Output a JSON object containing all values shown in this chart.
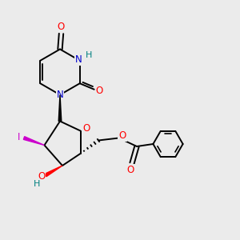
{
  "bg_color": "#ebebeb",
  "atom_colors": {
    "O": "#ff0000",
    "N": "#0000cc",
    "H": "#008080",
    "I": "#cc00cc",
    "C": "#000000"
  },
  "bond_color": "#000000",
  "figsize": [
    3.0,
    3.0
  ],
  "dpi": 100
}
